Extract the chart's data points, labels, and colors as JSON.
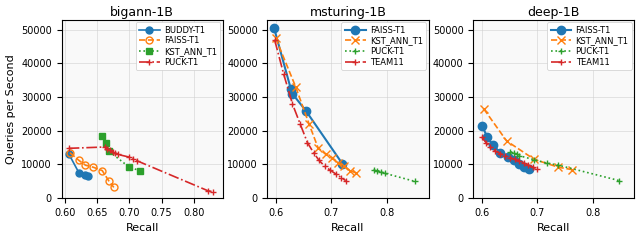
{
  "panels": [
    {
      "title": "bigann-1B",
      "xlabel": "Recall",
      "xlim": [
        0.595,
        0.845
      ],
      "ylim": [
        0,
        53000
      ],
      "yticks": [
        0,
        10000,
        20000,
        30000,
        40000,
        50000
      ],
      "series": [
        {
          "label": "BUDDY-T1",
          "color": "#1f77b4",
          "linestyle": "-",
          "marker": "o",
          "markersize": 5,
          "linewidth": 1.2,
          "x": [
            0.606,
            0.622,
            0.632,
            0.636
          ],
          "y": [
            13200,
            7500,
            6800,
            6500
          ]
        },
        {
          "label": "FAISS-T1",
          "color": "#ff7f0e",
          "linestyle": "--",
          "marker": "o",
          "markersize": 5,
          "linewidth": 1.2,
          "x": [
            0.608,
            0.622,
            0.632,
            0.644,
            0.658,
            0.668,
            0.676
          ],
          "y": [
            13500,
            11200,
            9800,
            9200,
            8200,
            5200,
            3200
          ]
        },
        {
          "label": "KST_ANN_T1",
          "color": "#2ca02c",
          "linestyle": ":",
          "marker": "s",
          "markersize": 5,
          "linewidth": 1.2,
          "x": [
            0.658,
            0.664,
            0.668,
            0.7,
            0.716
          ],
          "y": [
            18500,
            16500,
            14000,
            9200,
            8200
          ]
        },
        {
          "label": "PUCK-T1",
          "color": "#d62728",
          "linestyle": "-.",
          "marker": "o",
          "markersize": 4,
          "linewidth": 1.2,
          "x": [
            0.606,
            0.662,
            0.666,
            0.67,
            0.674,
            0.678,
            0.682,
            0.7,
            0.706,
            0.712,
            0.822,
            0.83
          ],
          "y": [
            14800,
            15200,
            14700,
            14200,
            13700,
            13300,
            13000,
            12200,
            11600,
            11100,
            2200,
            1900
          ]
        }
      ],
      "legend": true
    },
    {
      "title": "msturing-1B",
      "xlabel": "Recall",
      "xlim": [
        0.585,
        0.875
      ],
      "ylim": [
        0,
        53000
      ],
      "yticks": [
        0,
        10000,
        20000,
        30000,
        40000,
        50000
      ],
      "series": [
        {
          "label": "FAISS-T1",
          "color": "#1f77b4",
          "linestyle": "-",
          "marker": "o",
          "markersize": 6,
          "linewidth": 1.5,
          "x": [
            0.597,
            0.627,
            0.63,
            0.654,
            0.72
          ],
          "y": [
            50500,
            32500,
            31000,
            26000,
            10200
          ]
        },
        {
          "label": "KST_ANN_T1",
          "color": "#ff7f0e",
          "linestyle": "--",
          "marker": "x",
          "markersize": 6,
          "linewidth": 1.2,
          "x": [
            0.6,
            0.636,
            0.66,
            0.676,
            0.69,
            0.702,
            0.712,
            0.722,
            0.734,
            0.744
          ],
          "y": [
            47500,
            33000,
            22000,
            15000,
            13000,
            12000,
            10500,
            9500,
            8200,
            7500
          ]
        },
        {
          "label": "PUCK-T1",
          "color": "#2ca02c",
          "linestyle": ":",
          "marker": "s",
          "markersize": 5,
          "linewidth": 1.2,
          "x": [
            0.776,
            0.783,
            0.79,
            0.796,
            0.85
          ],
          "y": [
            8500,
            8200,
            7800,
            7400,
            5000
          ]
        },
        {
          "label": "TEAM11",
          "color": "#d62728",
          "linestyle": "-.",
          "marker": "o",
          "markersize": 4,
          "linewidth": 1.2,
          "x": [
            0.598,
            0.614,
            0.63,
            0.644,
            0.657,
            0.668,
            0.678,
            0.688,
            0.698,
            0.708,
            0.718,
            0.726
          ],
          "y": [
            47000,
            37000,
            28000,
            22000,
            16500,
            13500,
            11200,
            9500,
            8300,
            7200,
            6100,
            5200
          ]
        }
      ],
      "legend": true
    },
    {
      "title": "deep-1B",
      "xlabel": "Recall",
      "xlim": [
        0.585,
        0.875
      ],
      "ylim": [
        0,
        53000
      ],
      "yticks": [
        0,
        10000,
        20000,
        30000,
        40000,
        50000
      ],
      "series": [
        {
          "label": "FAISS-T1",
          "color": "#1f77b4",
          "linestyle": "-",
          "marker": "o",
          "markersize": 6,
          "linewidth": 1.5,
          "x": [
            0.601,
            0.61,
            0.62,
            0.634,
            0.648,
            0.658,
            0.668,
            0.677,
            0.686
          ],
          "y": [
            21500,
            18200,
            15800,
            13500,
            12200,
            11200,
            10200,
            9400,
            8600
          ]
        },
        {
          "label": "KST_ANN_T1",
          "color": "#ff7f0e",
          "linestyle": "--",
          "marker": "x",
          "markersize": 6,
          "linewidth": 1.2,
          "x": [
            0.604,
            0.645,
            0.695,
            0.738,
            0.762
          ],
          "y": [
            26500,
            17000,
            11500,
            9200,
            8500
          ]
        },
        {
          "label": "PUCK-T1",
          "color": "#2ca02c",
          "linestyle": ":",
          "marker": "s",
          "markersize": 5,
          "linewidth": 1.2,
          "x": [
            0.652,
            0.658,
            0.663,
            0.668,
            0.695,
            0.718,
            0.738,
            0.848
          ],
          "y": [
            13800,
            13400,
            13000,
            12600,
            11400,
            10400,
            9800,
            5200
          ]
        },
        {
          "label": "TEAM11",
          "color": "#d62728",
          "linestyle": "-.",
          "marker": "o",
          "markersize": 4,
          "linewidth": 1.2,
          "x": [
            0.6,
            0.608,
            0.616,
            0.625,
            0.634,
            0.643,
            0.652,
            0.66,
            0.668,
            0.676,
            0.684,
            0.692,
            0.7
          ],
          "y": [
            18200,
            16500,
            15200,
            14000,
            13200,
            12600,
            12000,
            11500,
            11000,
            10500,
            9800,
            9200,
            8700
          ]
        }
      ],
      "legend": true
    }
  ],
  "ylabel": "Queries per Second",
  "figure_width": 6.4,
  "figure_height": 2.39,
  "dpi": 100
}
